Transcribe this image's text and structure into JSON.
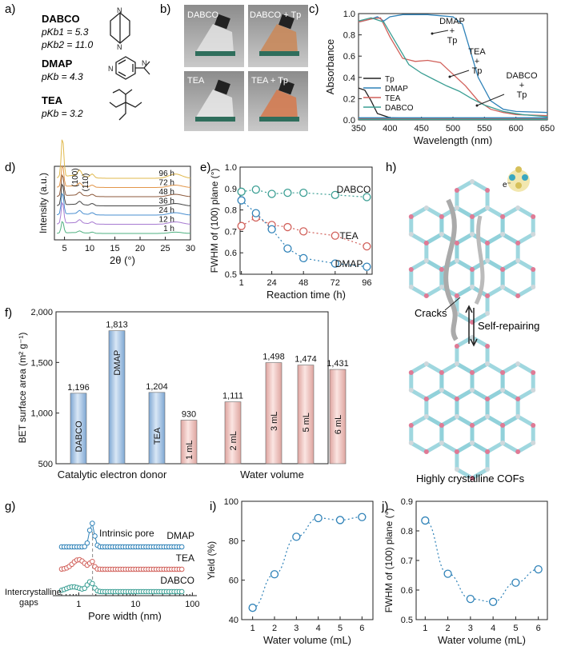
{
  "panels": {
    "a": "a)",
    "b": "b)",
    "c": "c)",
    "d": "d)",
    "e": "e)",
    "f": "f)",
    "g": "g)",
    "h": "h)",
    "i": "i)",
    "j": "j)"
  },
  "panel_a": {
    "dabco": {
      "name": "DABCO",
      "pk1": "pKb1 = 5.3",
      "pk2": "pKb2 = 11.0"
    },
    "dmap": {
      "name": "DMAP",
      "pk": "pKb = 4.3"
    },
    "tea": {
      "name": "TEA",
      "pk": "pKb = 3.2"
    }
  },
  "panel_b": {
    "photos": [
      "DABCO",
      "DABCO + Tp",
      "TEA",
      "TEA + Tp"
    ]
  },
  "panel_h": {
    "cracks": "Cracks",
    "self_repairing": "Self-repairing",
    "caption": "Highly crystalline COFs",
    "electron": "e⁻"
  },
  "colors": {
    "blue": "#2f82b8",
    "red": "#d1605a",
    "teal": "#3a9e93",
    "bar_blue": "#a9c6e5",
    "bar_red": "#f2c5c1",
    "cyan": "#4fc3d0",
    "pink": "#e07a95"
  },
  "chart_data": [
    {
      "id": "c",
      "type": "line",
      "title": "",
      "xlabel": "Wavelength (nm)",
      "ylabel": "Absorbance",
      "xlim": [
        350,
        650
      ],
      "ylim": [
        0.0,
        1.0
      ],
      "xticks": [
        350,
        400,
        450,
        500,
        550,
        600,
        650
      ],
      "yticks": [
        0.0,
        0.2,
        0.4,
        0.6,
        0.8,
        1.0
      ],
      "legend": [
        "Tp",
        "DMAP",
        "TEA",
        "DABCO"
      ],
      "annotations": [
        "DMAP\n+\nTp",
        "TEA\n+\nTp",
        "DABCO\n+\nTp"
      ],
      "series": [
        {
          "name": "Tp",
          "x": [
            350,
            360,
            370,
            380,
            400,
            450,
            500,
            650
          ],
          "y": [
            0.3,
            0.28,
            0.18,
            0.06,
            0.02,
            0.01,
            0.01,
            0.01
          ]
        },
        {
          "name": "DMAP",
          "x": [
            350,
            400,
            500,
            650
          ],
          "y": [
            0.02,
            0.02,
            0.02,
            0.02
          ]
        },
        {
          "name": "TEA",
          "x": [
            350,
            400,
            500,
            650
          ],
          "y": [
            0.01,
            0.01,
            0.01,
            0.01
          ]
        },
        {
          "name": "DABCO",
          "x": [
            350,
            400,
            500,
            650
          ],
          "y": [
            0.005,
            0.005,
            0.005,
            0.005
          ]
        },
        {
          "name": "DMAP + Tp",
          "x": [
            350,
            370,
            380,
            390,
            400,
            420,
            440,
            460,
            480,
            500,
            515,
            525,
            540,
            560,
            580,
            600,
            650
          ],
          "y": [
            0.92,
            0.95,
            0.97,
            0.93,
            0.97,
            0.99,
            0.99,
            0.99,
            0.98,
            0.97,
            0.9,
            0.7,
            0.4,
            0.18,
            0.1,
            0.08,
            0.07
          ]
        },
        {
          "name": "TEA + Tp",
          "x": [
            350,
            370,
            385,
            400,
            420,
            440,
            460,
            480,
            500,
            520,
            540,
            560,
            580,
            600,
            650
          ],
          "y": [
            0.92,
            0.95,
            0.96,
            0.78,
            0.58,
            0.55,
            0.56,
            0.54,
            0.43,
            0.32,
            0.18,
            0.1,
            0.07,
            0.05,
            0.04
          ]
        },
        {
          "name": "DABCO + Tp",
          "x": [
            350,
            370,
            390,
            410,
            430,
            450,
            470,
            490,
            510,
            530,
            550,
            580,
            610,
            650
          ],
          "y": [
            0.93,
            0.96,
            0.92,
            0.72,
            0.52,
            0.44,
            0.38,
            0.32,
            0.27,
            0.2,
            0.14,
            0.08,
            0.05,
            0.03
          ]
        }
      ]
    },
    {
      "id": "d",
      "type": "line",
      "xlabel": "2θ (°)",
      "ylabel": "Intensity (a.u.)",
      "xlim": [
        3,
        30
      ],
      "xticks": [
        5,
        10,
        15,
        20,
        25,
        30
      ],
      "annotations": [
        "(100)",
        "(110)"
      ],
      "series_labels": [
        "96 h",
        "72 h",
        "48 h",
        "36 h",
        "24 h",
        "12 h",
        "1 h"
      ],
      "series_colors": [
        "#e0b84c",
        "#e2964a",
        "#8d5a3c",
        "#444444",
        "#4a8fd0",
        "#a77bd1",
        "#4fb080"
      ]
    },
    {
      "id": "e",
      "type": "line",
      "xlabel": "Reaction time (h)",
      "ylabel": "FWHM of (100) plane (°)",
      "xticks": [
        1,
        24,
        48,
        72,
        96
      ],
      "xlim": [
        0,
        100
      ],
      "ylim": [
        0.5,
        1.0
      ],
      "yticks": [
        0.5,
        0.6,
        0.7,
        0.8,
        0.9,
        1.0
      ],
      "series": [
        {
          "name": "DABCO",
          "x": [
            1,
            12,
            24,
            36,
            48,
            72,
            96
          ],
          "y": [
            0.885,
            0.895,
            0.875,
            0.88,
            0.88,
            0.87,
            0.86
          ]
        },
        {
          "name": "TEA",
          "x": [
            1,
            12,
            24,
            36,
            48,
            72,
            96
          ],
          "y": [
            0.725,
            0.765,
            0.73,
            0.72,
            0.7,
            0.68,
            0.63
          ]
        },
        {
          "name": "DMAP",
          "x": [
            1,
            12,
            24,
            36,
            48,
            72,
            96
          ],
          "y": [
            0.845,
            0.785,
            0.71,
            0.62,
            0.575,
            0.55,
            0.535
          ]
        }
      ]
    },
    {
      "id": "f",
      "type": "bar",
      "ylabel": "BET surface area (m² g⁻¹)",
      "ylim": [
        500,
        2000
      ],
      "yticks": [
        500,
        1000,
        1500,
        2000
      ],
      "ytick_labels": [
        "500",
        "1,000",
        "1,500",
        "2,000"
      ],
      "groups": [
        "Catalytic electron donor",
        "Water volume"
      ],
      "categories": [
        "DABCO",
        "DMAP",
        "TEA",
        "1 mL",
        "2 mL",
        "3 mL",
        "5 mL",
        "6 mL"
      ],
      "values": [
        1196,
        1813,
        1204,
        930,
        1111,
        1498,
        1474,
        1431
      ],
      "value_labels": [
        "1,196",
        "1,813",
        "1,204",
        "930",
        "1,111",
        "1,498",
        "1,474",
        "1,431"
      ]
    },
    {
      "id": "g",
      "type": "line",
      "xlabel": "Pore width (nm)",
      "xscale": "log",
      "xticks": [
        1,
        10,
        100
      ],
      "annotations": [
        "Intrinsic pore",
        "Intercrystalline gaps"
      ],
      "series_labels": [
        "DMAP",
        "TEA",
        "DABCO"
      ]
    },
    {
      "id": "i",
      "type": "scatter",
      "xlabel": "Water volume (mL)",
      "ylabel": "Yield (%)",
      "xlim": [
        0.5,
        6.5
      ],
      "ylim": [
        40,
        100
      ],
      "xticks": [
        1,
        2,
        3,
        4,
        5,
        6
      ],
      "yticks": [
        40,
        60,
        80,
        100
      ],
      "x": [
        1,
        2,
        3,
        4,
        5,
        6
      ],
      "y": [
        46,
        63,
        82,
        91.5,
        90.5,
        92
      ]
    },
    {
      "id": "j",
      "type": "scatter",
      "xlabel": "Water volume (mL)",
      "ylabel": "FWHM of (100) plane (°)",
      "xlim": [
        0.6,
        6.4
      ],
      "ylim": [
        0.5,
        0.9
      ],
      "xticks": [
        1,
        2,
        3,
        4,
        5,
        6
      ],
      "yticks": [
        0.5,
        0.6,
        0.7,
        0.8,
        0.9
      ],
      "x": [
        1,
        2,
        3,
        4,
        5,
        6
      ],
      "y": [
        0.835,
        0.655,
        0.57,
        0.56,
        0.625,
        0.67
      ]
    }
  ]
}
